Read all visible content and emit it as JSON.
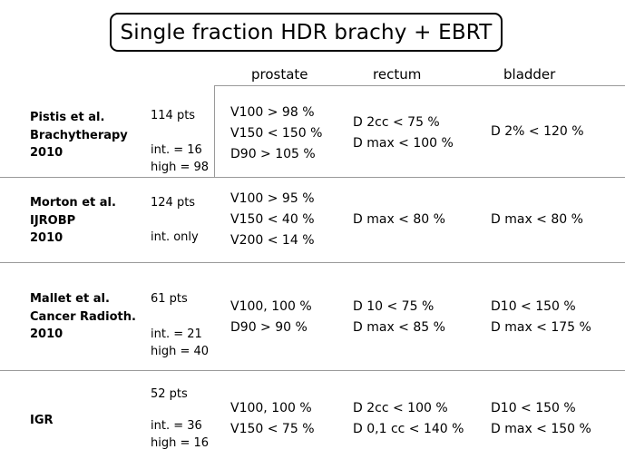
{
  "title": "Single fraction HDR brachy + EBRT",
  "columns": {
    "prostate": "prostate",
    "rectum": "rectum",
    "bladder": "bladder"
  },
  "rows": [
    {
      "study": [
        "Pistis et al.",
        "Brachytherapy",
        "2010"
      ],
      "pts": "114 pts",
      "groups": [
        "int. = 16",
        "high = 98"
      ],
      "prostate": [
        "V100 > 98 %",
        "V150 < 150 %",
        "D90 > 105 %"
      ],
      "rectum": [
        "D 2cc < 75 %",
        "D max < 100 %"
      ],
      "bladder": [
        "D 2% < 120 %"
      ]
    },
    {
      "study": [
        "Morton et al.",
        "IJROBP",
        "2010"
      ],
      "pts": "124 pts",
      "groups": [
        "int. only"
      ],
      "prostate": [
        "V100 > 95 %",
        "V150 < 40 %",
        "V200 < 14 %"
      ],
      "rectum": [
        "D max < 80 %"
      ],
      "bladder": [
        "D max < 80 %"
      ]
    },
    {
      "study": [
        "Mallet et al.",
        "Cancer Radioth.",
        "2010"
      ],
      "pts": "61 pts",
      "groups": [
        "int. = 21",
        "high = 40"
      ],
      "prostate": [
        "V100, 100 %",
        "D90 > 90 %"
      ],
      "rectum": [
        "D 10 < 75 %",
        "D max < 85 %"
      ],
      "bladder": [
        "D10 < 150 %",
        "D max < 175 %"
      ]
    },
    {
      "study": [
        "IGR"
      ],
      "pts": "52 pts",
      "groups": [
        "int. = 36",
        "high = 16"
      ],
      "prostate": [
        "V100, 100 %",
        "V150 < 75 %"
      ],
      "rectum": [
        "D 2cc < 100 %",
        "D 0,1 cc < 140 %"
      ],
      "bladder": [
        "D10 < 150 %",
        "D max < 150 %"
      ]
    }
  ]
}
